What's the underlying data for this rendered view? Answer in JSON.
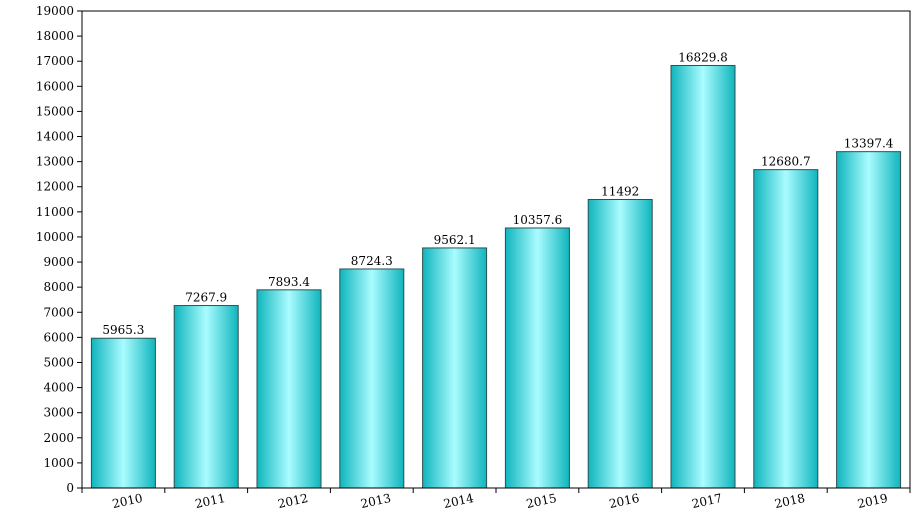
{
  "chart_data": {
    "type": "bar",
    "title": "",
    "xlabel": "",
    "ylabel": "",
    "categories": [
      "2010",
      "2011",
      "2012",
      "2013",
      "2014",
      "2015",
      "2016",
      "2017",
      "2018",
      "2019"
    ],
    "values": [
      5965.3,
      7267.9,
      7893.4,
      8724.3,
      9562.1,
      10357.6,
      11492,
      16829.8,
      12680.7,
      13397.4
    ],
    "data_labels": [
      "5965.3",
      "7267.9",
      "7893.4",
      "8724.3",
      "9562.1",
      "10357.6",
      "11492",
      "16829.8",
      "12680.7",
      "13397.4"
    ],
    "ylim": [
      0,
      19000
    ],
    "y_ticks": [
      "0",
      "1000",
      "2000",
      "3000",
      "4000",
      "5000",
      "6000",
      "7000",
      "8000",
      "9000",
      "10000",
      "11000",
      "12000",
      "13000",
      "14000",
      "15000",
      "16000",
      "17000",
      "18000",
      "19000"
    ],
    "grid": false,
    "legend": "none",
    "colors": {
      "bar_edge": "#0fb5bd",
      "bar_mid": "#aafcff",
      "bar_border": "#2f4f4f",
      "axis": "#000000"
    }
  }
}
